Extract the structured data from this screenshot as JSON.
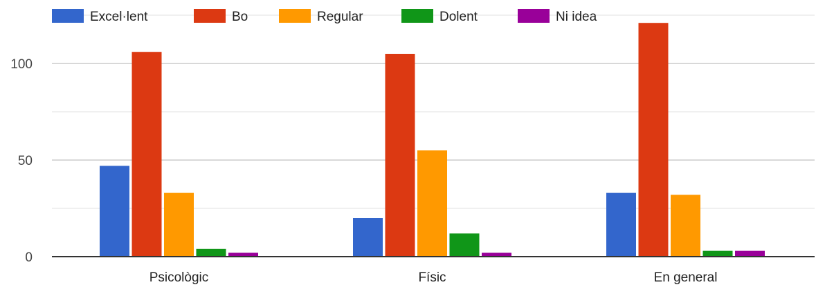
{
  "chart_data": {
    "type": "bar",
    "categories": [
      "Psicològic",
      "Físic",
      "En general"
    ],
    "series": [
      {
        "name": "Excel·lent",
        "color": "#3366cc",
        "values": [
          47,
          20,
          33
        ]
      },
      {
        "name": "Bo",
        "color": "#dc3912",
        "values": [
          106,
          105,
          121
        ]
      },
      {
        "name": "Regular",
        "color": "#ff9900",
        "values": [
          33,
          55,
          32
        ]
      },
      {
        "name": "Dolent",
        "color": "#109618",
        "values": [
          4,
          12,
          3
        ]
      },
      {
        "name": "Ni idea",
        "color": "#990099",
        "values": [
          2,
          2,
          3
        ]
      }
    ],
    "yticks": [
      0,
      50,
      100
    ],
    "ylim": [
      0,
      125
    ],
    "grid": true,
    "legend_position": "top-left"
  }
}
